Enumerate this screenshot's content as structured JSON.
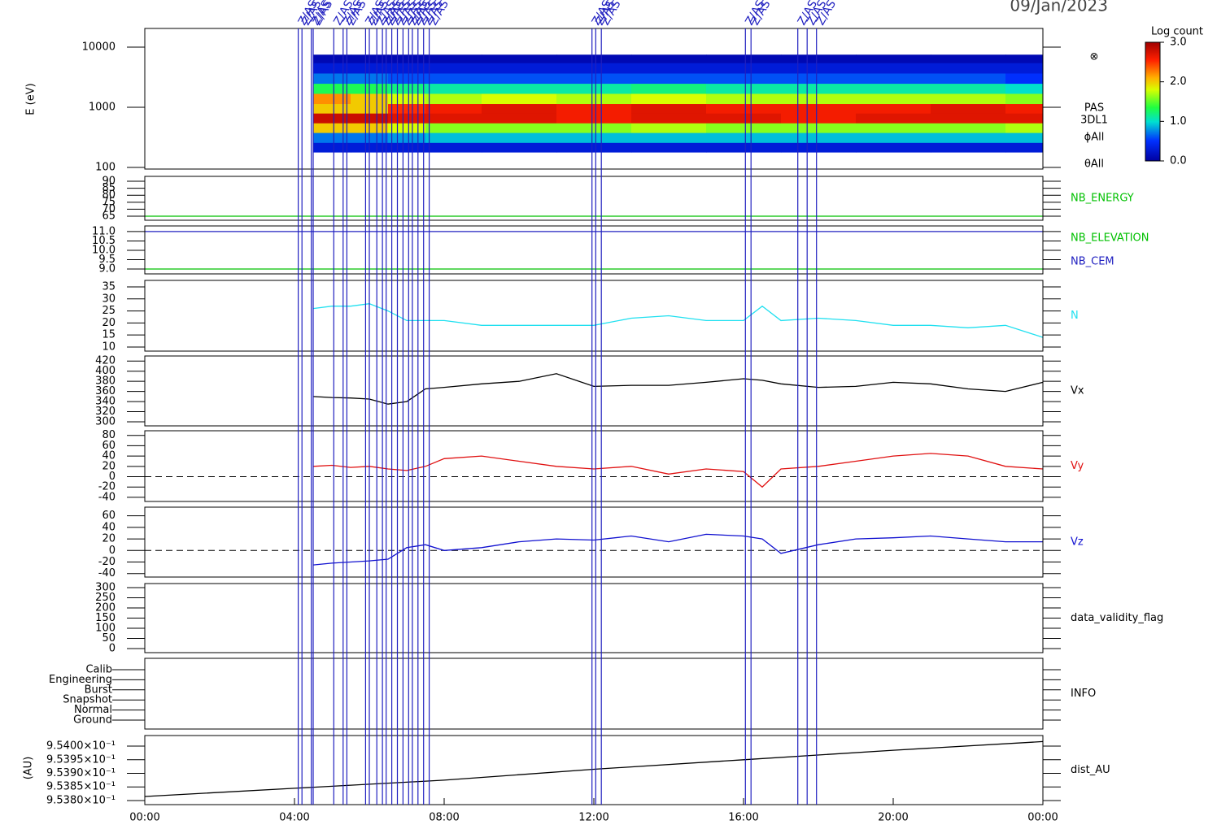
{
  "chart_data": [
    {
      "type": "spectrogram",
      "date": "09/Jan/2023",
      "ylabel": "E (eV)",
      "log_scale": true,
      "ylim": [
        94,
        20460
      ],
      "xlim": [
        0,
        24
      ],
      "yticks": [
        100,
        1000,
        10000
      ],
      "annotations": [
        "⊗",
        "PAS",
        "3DL1",
        "ϕAll",
        "θAll"
      ],
      "colorbar_title": "Log count",
      "zlim": [
        0,
        3
      ],
      "zticks": [
        {
          "value": 0,
          "label": "0.0"
        },
        {
          "value": 1,
          "label": "1.0"
        },
        {
          "value": 2,
          "label": "2.0"
        },
        {
          "value": 3,
          "label": "3.0"
        }
      ],
      "time_bins": [
        4.5,
        5.5,
        6.5,
        7.5,
        9,
        11,
        13,
        15,
        17,
        19,
        21,
        23,
        24
      ],
      "energy_bins": [
        180,
        260,
        380,
        550,
        800,
        1150,
        1700,
        2500,
        3700,
        5500,
        7500
      ],
      "z": [
        [
          0.3,
          0.7,
          2.0,
          2.8,
          2.0,
          2.2,
          1.3,
          0.7,
          0.3,
          0.1
        ],
        [
          0.3,
          0.7,
          2.0,
          2.8,
          2.0,
          2.0,
          1.3,
          0.7,
          0.3,
          0.1
        ],
        [
          0.3,
          0.8,
          1.8,
          2.7,
          2.5,
          1.8,
          1.2,
          0.6,
          0.3,
          0.1
        ],
        [
          0.3,
          0.9,
          1.6,
          2.7,
          2.6,
          1.7,
          1.1,
          0.6,
          0.3,
          0.1
        ],
        [
          0.3,
          0.9,
          1.6,
          2.7,
          2.7,
          1.8,
          1.1,
          0.6,
          0.3,
          0.1
        ],
        [
          0.3,
          0.9,
          1.6,
          2.6,
          2.6,
          1.7,
          1.1,
          0.6,
          0.3,
          0.1
        ],
        [
          0.3,
          0.9,
          1.7,
          2.7,
          2.7,
          1.8,
          1.2,
          0.6,
          0.3,
          0.1
        ],
        [
          0.3,
          0.9,
          1.6,
          2.7,
          2.6,
          1.7,
          1.1,
          0.6,
          0.3,
          0.1
        ],
        [
          0.3,
          0.9,
          1.6,
          2.6,
          2.6,
          1.7,
          1.1,
          0.6,
          0.3,
          0.1
        ],
        [
          0.3,
          0.9,
          1.6,
          2.7,
          2.6,
          1.7,
          1.1,
          0.6,
          0.3,
          0.1
        ],
        [
          0.3,
          0.9,
          1.6,
          2.7,
          2.7,
          1.7,
          1.1,
          0.6,
          0.3,
          0.1
        ],
        [
          0.3,
          0.9,
          1.7,
          2.7,
          2.6,
          1.6,
          1.0,
          0.5,
          0.3,
          0.1
        ]
      ],
      "events": {
        "label": "Z/AS",
        "color": "#2020c0",
        "x": [
          4.1,
          4.2,
          4.45,
          4.5,
          5.05,
          5.3,
          5.4,
          5.9,
          6.0,
          6.2,
          6.35,
          6.45,
          6.6,
          6.75,
          6.9,
          7.05,
          7.15,
          7.3,
          7.45,
          7.6,
          11.95,
          12.05,
          12.2,
          16.05,
          16.2,
          17.45,
          17.7,
          17.95
        ]
      }
    },
    {
      "type": "line",
      "xlim": [
        0,
        24
      ],
      "ylim": [
        62.1,
        93.5
      ],
      "yticks": [
        65,
        70,
        75,
        80,
        85,
        90
      ],
      "x": [
        0,
        24
      ],
      "series": [
        {
          "name": "NB_ENERGY",
          "color": "#00c000",
          "values": [
            65,
            65
          ]
        }
      ]
    },
    {
      "type": "line",
      "xlim": [
        0,
        24
      ],
      "ylim": [
        8.74,
        11.3
      ],
      "yticks": [
        {
          "value": 9,
          "label": "9.0"
        },
        {
          "value": 9.5,
          "label": "9.5"
        },
        {
          "value": 10,
          "label": "10.0"
        },
        {
          "value": 10.5,
          "label": "10.5"
        },
        {
          "value": 11,
          "label": "11.0"
        }
      ],
      "x": [
        0,
        24
      ],
      "series": [
        {
          "name": "NB_ELEVATION",
          "color": "#00c000",
          "values": [
            9,
            9
          ]
        },
        {
          "name": "NB_CEM",
          "color": "#2020c0",
          "values": [
            11,
            11
          ]
        }
      ]
    },
    {
      "type": "line",
      "xlim": [
        0,
        24
      ],
      "ylim": [
        8.3,
        37.7
      ],
      "yticks": [
        10,
        15,
        20,
        25,
        30,
        35
      ],
      "x": [
        4.5,
        5,
        5.5,
        6,
        6.5,
        7,
        7.5,
        8,
        9,
        10,
        11,
        12,
        13,
        14,
        15,
        16,
        16.5,
        17,
        18,
        19,
        20,
        21,
        22,
        23,
        24
      ],
      "series": [
        {
          "name": "N",
          "color": "#20e0f0",
          "values": [
            26,
            27,
            27,
            28,
            25,
            21,
            21,
            21,
            19,
            19,
            19,
            19,
            22,
            23,
            21,
            21,
            27,
            21,
            22,
            21,
            19,
            19,
            18,
            19,
            14
          ]
        }
      ]
    },
    {
      "type": "line",
      "xlim": [
        0,
        24
      ],
      "ylim": [
        292,
        430
      ],
      "yticks": [
        300,
        320,
        340,
        360,
        380,
        400,
        420
      ],
      "x": [
        4.5,
        5,
        5.5,
        6,
        6.5,
        7,
        7.5,
        8,
        9,
        10,
        11,
        12,
        13,
        14,
        15,
        16,
        16.5,
        17,
        18,
        19,
        20,
        21,
        22,
        23,
        24
      ],
      "series": [
        {
          "name": "Vx",
          "color": "#000000",
          "values": [
            350,
            348,
            347,
            345,
            335,
            340,
            365,
            368,
            375,
            380,
            395,
            370,
            372,
            372,
            378,
            385,
            382,
            375,
            368,
            370,
            378,
            375,
            365,
            360,
            378
          ]
        }
      ]
    },
    {
      "type": "line",
      "xlim": [
        0,
        24
      ],
      "ylim": [
        -48,
        89
      ],
      "yticks": [
        -40,
        -20,
        0,
        20,
        40,
        60,
        80
      ],
      "zero_line": true,
      "x": [
        4.5,
        5,
        5.5,
        6,
        6.5,
        7,
        7.5,
        8,
        9,
        10,
        11,
        12,
        13,
        14,
        15,
        16,
        16.5,
        17,
        18,
        19,
        20,
        21,
        22,
        23,
        24
      ],
      "series": [
        {
          "name": "Vy",
          "color": "#e01010",
          "values": [
            20,
            22,
            18,
            20,
            15,
            12,
            20,
            35,
            40,
            30,
            20,
            15,
            20,
            5,
            15,
            10,
            -20,
            15,
            20,
            30,
            40,
            45,
            40,
            20,
            15
          ]
        }
      ]
    },
    {
      "type": "line",
      "xlim": [
        0,
        24
      ],
      "ylim": [
        -46,
        75
      ],
      "yticks": [
        -40,
        -20,
        0,
        20,
        40,
        60
      ],
      "zero_line": true,
      "x": [
        4.5,
        5,
        5.5,
        6,
        6.5,
        7,
        7.5,
        8,
        9,
        10,
        11,
        12,
        13,
        14,
        15,
        16,
        16.5,
        17,
        18,
        19,
        20,
        21,
        22,
        23,
        24
      ],
      "series": [
        {
          "name": "Vz",
          "color": "#1010d0",
          "values": [
            -25,
            -22,
            -20,
            -18,
            -15,
            5,
            10,
            0,
            5,
            15,
            20,
            18,
            25,
            15,
            28,
            25,
            20,
            -5,
            10,
            20,
            22,
            25,
            20,
            15,
            15
          ]
        }
      ]
    },
    {
      "type": "empty",
      "xlim": [
        0,
        24
      ],
      "ylim": [
        -20,
        320
      ],
      "yticks": [
        0,
        50,
        100,
        150,
        200,
        250,
        300
      ],
      "label": "data_validity_flag"
    },
    {
      "type": "category",
      "xlim": [
        0,
        24
      ],
      "categories": [
        "Calib",
        "Engineering",
        "Burst",
        "Snapshot",
        "Normal",
        "Ground"
      ],
      "label": "INFO"
    },
    {
      "type": "line",
      "xlim": [
        0,
        24
      ],
      "ylabel": "(AU)",
      "ylim": [
        0.953785,
        0.954039
      ],
      "yticks": [
        {
          "value": 0.9538,
          "label": "9.5380×10⁻¹"
        },
        {
          "value": 0.95385,
          "label": "9.5385×10⁻¹"
        },
        {
          "value": 0.9539,
          "label": "9.5390×10⁻¹"
        },
        {
          "value": 0.95395,
          "label": "9.5395×10⁻¹"
        },
        {
          "value": 0.954,
          "label": "9.5400×10⁻¹"
        }
      ],
      "xticks": [
        {
          "value": 0,
          "label": "00:00"
        },
        {
          "value": 4,
          "label": "04:00"
        },
        {
          "value": 8,
          "label": "08:00"
        },
        {
          "value": 12,
          "label": "12:00"
        },
        {
          "value": 16,
          "label": "16:00"
        },
        {
          "value": 20,
          "label": "20:00"
        },
        {
          "value": 24,
          "label": "00:00"
        }
      ],
      "x": [
        0,
        4,
        8,
        12,
        16,
        20,
        24
      ],
      "series": [
        {
          "name": "dist_AU",
          "color": "#000000",
          "values": [
            0.953815,
            0.953845,
            0.953875,
            0.953915,
            0.95395,
            0.953985,
            0.954017
          ]
        }
      ]
    }
  ]
}
